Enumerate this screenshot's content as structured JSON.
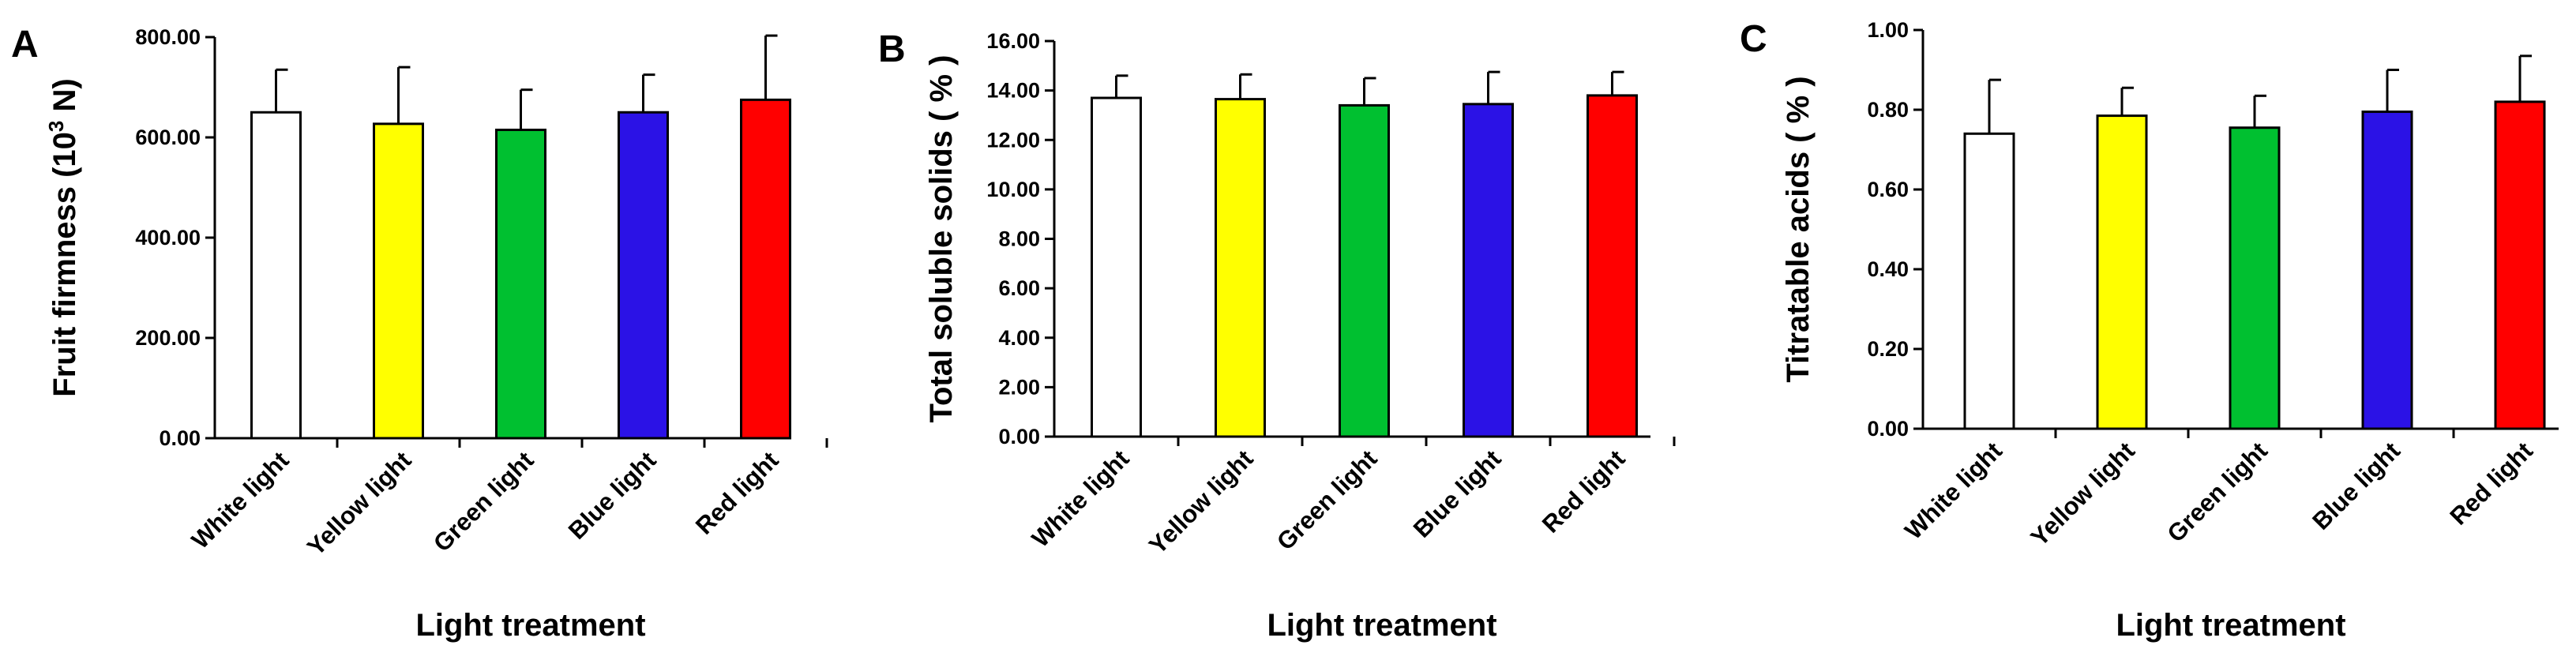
{
  "colors": {
    "White light": "#ffffff",
    "Yellow light": "#ffff00",
    "Green light": "#00c030",
    "Blue light": "#2b12e6",
    "Red light": "#ff0000"
  },
  "chart_data": [
    {
      "type": "bar",
      "panel": "A",
      "categories": [
        "White light",
        "Yellow light",
        "Green light",
        "Blue light",
        "Red light"
      ],
      "values": [
        650,
        627,
        615,
        650,
        675
      ],
      "errors": [
        85,
        113,
        80,
        75,
        128
      ],
      "xlabel": "Light treatment",
      "ylabel_main": "Fruit firmness (10",
      "ylabel_sup": "3",
      "ylabel_tail": " N)",
      "ylim": [
        0,
        800
      ],
      "ticks": [
        "0.00",
        "200.00",
        "400.00",
        "600.00",
        "800.00"
      ]
    },
    {
      "type": "bar",
      "panel": "B",
      "categories": [
        "White light",
        "Yellow light",
        "Green light",
        "Blue light",
        "Red light"
      ],
      "values": [
        13.7,
        13.65,
        13.4,
        13.45,
        13.8
      ],
      "errors": [
        0.9,
        1.0,
        1.1,
        1.3,
        0.95
      ],
      "xlabel": "Light treatment",
      "ylabel": "Total soluble solids ( % )",
      "ylim": [
        0,
        16
      ],
      "ticks": [
        "0.00",
        "2.00",
        "4.00",
        "6.00",
        "8.00",
        "10.00",
        "12.00",
        "14.00",
        "16.00"
      ]
    },
    {
      "type": "bar",
      "panel": "C",
      "categories": [
        "White light",
        "Yellow light",
        "Green light",
        "Blue light",
        "Red light"
      ],
      "values": [
        0.74,
        0.785,
        0.755,
        0.795,
        0.82
      ],
      "errors": [
        0.135,
        0.07,
        0.08,
        0.105,
        0.115
      ],
      "xlabel": "Light treatment",
      "ylabel": "Titratable acids ( % )",
      "ylim": [
        0,
        1.0
      ],
      "ticks": [
        "0.00",
        "0.20",
        "0.40",
        "0.60",
        "0.80",
        "1.00"
      ]
    }
  ]
}
